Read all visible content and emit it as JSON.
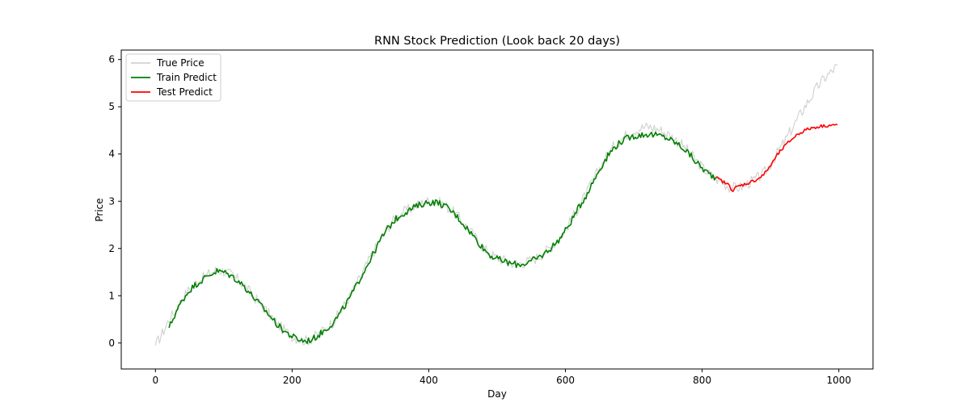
{
  "chart_data": {
    "type": "line",
    "title": "RNN Stock Prediction (Look back 20 days)",
    "xlabel": "Day",
    "ylabel": "Price",
    "xlim": [
      -50,
      1050
    ],
    "ylim": [
      -0.55,
      6.2
    ],
    "xticks": [
      0,
      200,
      400,
      600,
      800,
      1000
    ],
    "yticks": [
      0,
      1,
      2,
      3,
      4,
      5,
      6
    ],
    "grid": false,
    "legend": {
      "placement": "top-left",
      "entries": [
        {
          "name": "True Price",
          "color": "#d3d3d3"
        },
        {
          "name": "Train Predict",
          "color": "#008000"
        },
        {
          "name": "Test Predict",
          "color": "#ff0000"
        }
      ]
    },
    "series": [
      {
        "name": "True Price",
        "color": "#d3d3d3",
        "points": [
          [
            0,
            -0.05
          ],
          [
            10,
            0.2
          ],
          [
            20,
            0.5
          ],
          [
            30,
            0.7
          ],
          [
            40,
            0.95
          ],
          [
            50,
            1.15
          ],
          [
            60,
            1.28
          ],
          [
            70,
            1.38
          ],
          [
            80,
            1.48
          ],
          [
            90,
            1.55
          ],
          [
            100,
            1.52
          ],
          [
            110,
            1.45
          ],
          [
            120,
            1.35
          ],
          [
            130,
            1.22
          ],
          [
            140,
            1.05
          ],
          [
            150,
            0.88
          ],
          [
            160,
            0.72
          ],
          [
            170,
            0.55
          ],
          [
            180,
            0.38
          ],
          [
            190,
            0.25
          ],
          [
            200,
            0.15
          ],
          [
            210,
            0.08
          ],
          [
            220,
            0.05
          ],
          [
            230,
            0.1
          ],
          [
            240,
            0.2
          ],
          [
            250,
            0.32
          ],
          [
            260,
            0.45
          ],
          [
            270,
            0.65
          ],
          [
            280,
            0.88
          ],
          [
            290,
            1.12
          ],
          [
            300,
            1.4
          ],
          [
            310,
            1.68
          ],
          [
            320,
            1.95
          ],
          [
            330,
            2.22
          ],
          [
            340,
            2.45
          ],
          [
            350,
            2.62
          ],
          [
            360,
            2.75
          ],
          [
            370,
            2.82
          ],
          [
            380,
            2.9
          ],
          [
            390,
            2.96
          ],
          [
            400,
            3.0
          ],
          [
            410,
            3.0
          ],
          [
            420,
            2.95
          ],
          [
            430,
            2.85
          ],
          [
            440,
            2.72
          ],
          [
            450,
            2.55
          ],
          [
            460,
            2.38
          ],
          [
            470,
            2.2
          ],
          [
            480,
            2.02
          ],
          [
            490,
            1.88
          ],
          [
            500,
            1.8
          ],
          [
            510,
            1.75
          ],
          [
            520,
            1.7
          ],
          [
            530,
            1.68
          ],
          [
            540,
            1.7
          ],
          [
            550,
            1.75
          ],
          [
            560,
            1.82
          ],
          [
            570,
            1.92
          ],
          [
            580,
            2.05
          ],
          [
            590,
            2.2
          ],
          [
            600,
            2.4
          ],
          [
            610,
            2.65
          ],
          [
            620,
            2.9
          ],
          [
            630,
            3.15
          ],
          [
            640,
            3.42
          ],
          [
            650,
            3.7
          ],
          [
            660,
            3.95
          ],
          [
            670,
            4.15
          ],
          [
            680,
            4.3
          ],
          [
            690,
            4.42
          ],
          [
            700,
            4.5
          ],
          [
            710,
            4.55
          ],
          [
            720,
            4.58
          ],
          [
            730,
            4.55
          ],
          [
            740,
            4.5
          ],
          [
            750,
            4.42
          ],
          [
            760,
            4.32
          ],
          [
            770,
            4.2
          ],
          [
            780,
            4.05
          ],
          [
            790,
            3.88
          ],
          [
            800,
            3.72
          ],
          [
            810,
            3.58
          ],
          [
            820,
            3.48
          ],
          [
            830,
            3.4
          ],
          [
            840,
            3.3
          ],
          [
            850,
            3.28
          ],
          [
            860,
            3.32
          ],
          [
            870,
            3.4
          ],
          [
            880,
            3.48
          ],
          [
            890,
            3.58
          ],
          [
            900,
            3.78
          ],
          [
            910,
            4.02
          ],
          [
            920,
            4.25
          ],
          [
            930,
            4.5
          ],
          [
            940,
            4.75
          ],
          [
            950,
            5.0
          ],
          [
            960,
            5.22
          ],
          [
            970,
            5.45
          ],
          [
            980,
            5.62
          ],
          [
            990,
            5.75
          ],
          [
            998,
            5.88
          ]
        ]
      },
      {
        "name": "Train Predict",
        "color": "#008000",
        "points": [
          [
            20,
            0.32
          ],
          [
            30,
            0.65
          ],
          [
            40,
            0.92
          ],
          [
            50,
            1.12
          ],
          [
            60,
            1.25
          ],
          [
            70,
            1.35
          ],
          [
            80,
            1.45
          ],
          [
            90,
            1.52
          ],
          [
            100,
            1.5
          ],
          [
            110,
            1.43
          ],
          [
            120,
            1.33
          ],
          [
            130,
            1.2
          ],
          [
            140,
            1.03
          ],
          [
            150,
            0.86
          ],
          [
            160,
            0.7
          ],
          [
            170,
            0.53
          ],
          [
            180,
            0.36
          ],
          [
            190,
            0.24
          ],
          [
            200,
            0.14
          ],
          [
            210,
            0.07
          ],
          [
            220,
            0.04
          ],
          [
            230,
            0.08
          ],
          [
            240,
            0.18
          ],
          [
            250,
            0.3
          ],
          [
            260,
            0.43
          ],
          [
            270,
            0.62
          ],
          [
            280,
            0.85
          ],
          [
            290,
            1.1
          ],
          [
            300,
            1.38
          ],
          [
            310,
            1.65
          ],
          [
            320,
            1.92
          ],
          [
            330,
            2.2
          ],
          [
            340,
            2.42
          ],
          [
            350,
            2.6
          ],
          [
            360,
            2.72
          ],
          [
            370,
            2.8
          ],
          [
            380,
            2.88
          ],
          [
            390,
            2.94
          ],
          [
            400,
            2.98
          ],
          [
            410,
            2.98
          ],
          [
            420,
            2.93
          ],
          [
            430,
            2.83
          ],
          [
            440,
            2.7
          ],
          [
            450,
            2.53
          ],
          [
            460,
            2.36
          ],
          [
            470,
            2.18
          ],
          [
            480,
            2.0
          ],
          [
            490,
            1.86
          ],
          [
            500,
            1.78
          ],
          [
            510,
            1.73
          ],
          [
            520,
            1.68
          ],
          [
            530,
            1.66
          ],
          [
            540,
            1.68
          ],
          [
            550,
            1.73
          ],
          [
            560,
            1.8
          ],
          [
            570,
            1.9
          ],
          [
            580,
            2.03
          ],
          [
            590,
            2.18
          ],
          [
            600,
            2.38
          ],
          [
            610,
            2.62
          ],
          [
            620,
            2.88
          ],
          [
            630,
            3.12
          ],
          [
            640,
            3.4
          ],
          [
            650,
            3.68
          ],
          [
            660,
            3.92
          ],
          [
            670,
            4.12
          ],
          [
            680,
            4.25
          ],
          [
            690,
            4.33
          ],
          [
            700,
            4.38
          ],
          [
            710,
            4.4
          ],
          [
            720,
            4.42
          ],
          [
            730,
            4.4
          ],
          [
            740,
            4.38
          ],
          [
            750,
            4.33
          ],
          [
            760,
            4.25
          ],
          [
            770,
            4.15
          ],
          [
            780,
            4.02
          ],
          [
            790,
            3.85
          ],
          [
            800,
            3.7
          ],
          [
            810,
            3.58
          ],
          [
            820,
            3.5
          ]
        ]
      },
      {
        "name": "Test Predict",
        "color": "#ff0000",
        "points": [
          [
            820,
            3.5
          ],
          [
            830,
            3.42
          ],
          [
            840,
            3.33
          ],
          [
            845,
            3.22
          ],
          [
            850,
            3.3
          ],
          [
            860,
            3.35
          ],
          [
            870,
            3.4
          ],
          [
            880,
            3.46
          ],
          [
            890,
            3.56
          ],
          [
            900,
            3.75
          ],
          [
            910,
            3.98
          ],
          [
            920,
            4.15
          ],
          [
            930,
            4.3
          ],
          [
            940,
            4.42
          ],
          [
            950,
            4.5
          ],
          [
            960,
            4.55
          ],
          [
            970,
            4.58
          ],
          [
            980,
            4.6
          ],
          [
            990,
            4.61
          ],
          [
            998,
            4.62
          ]
        ]
      }
    ]
  }
}
